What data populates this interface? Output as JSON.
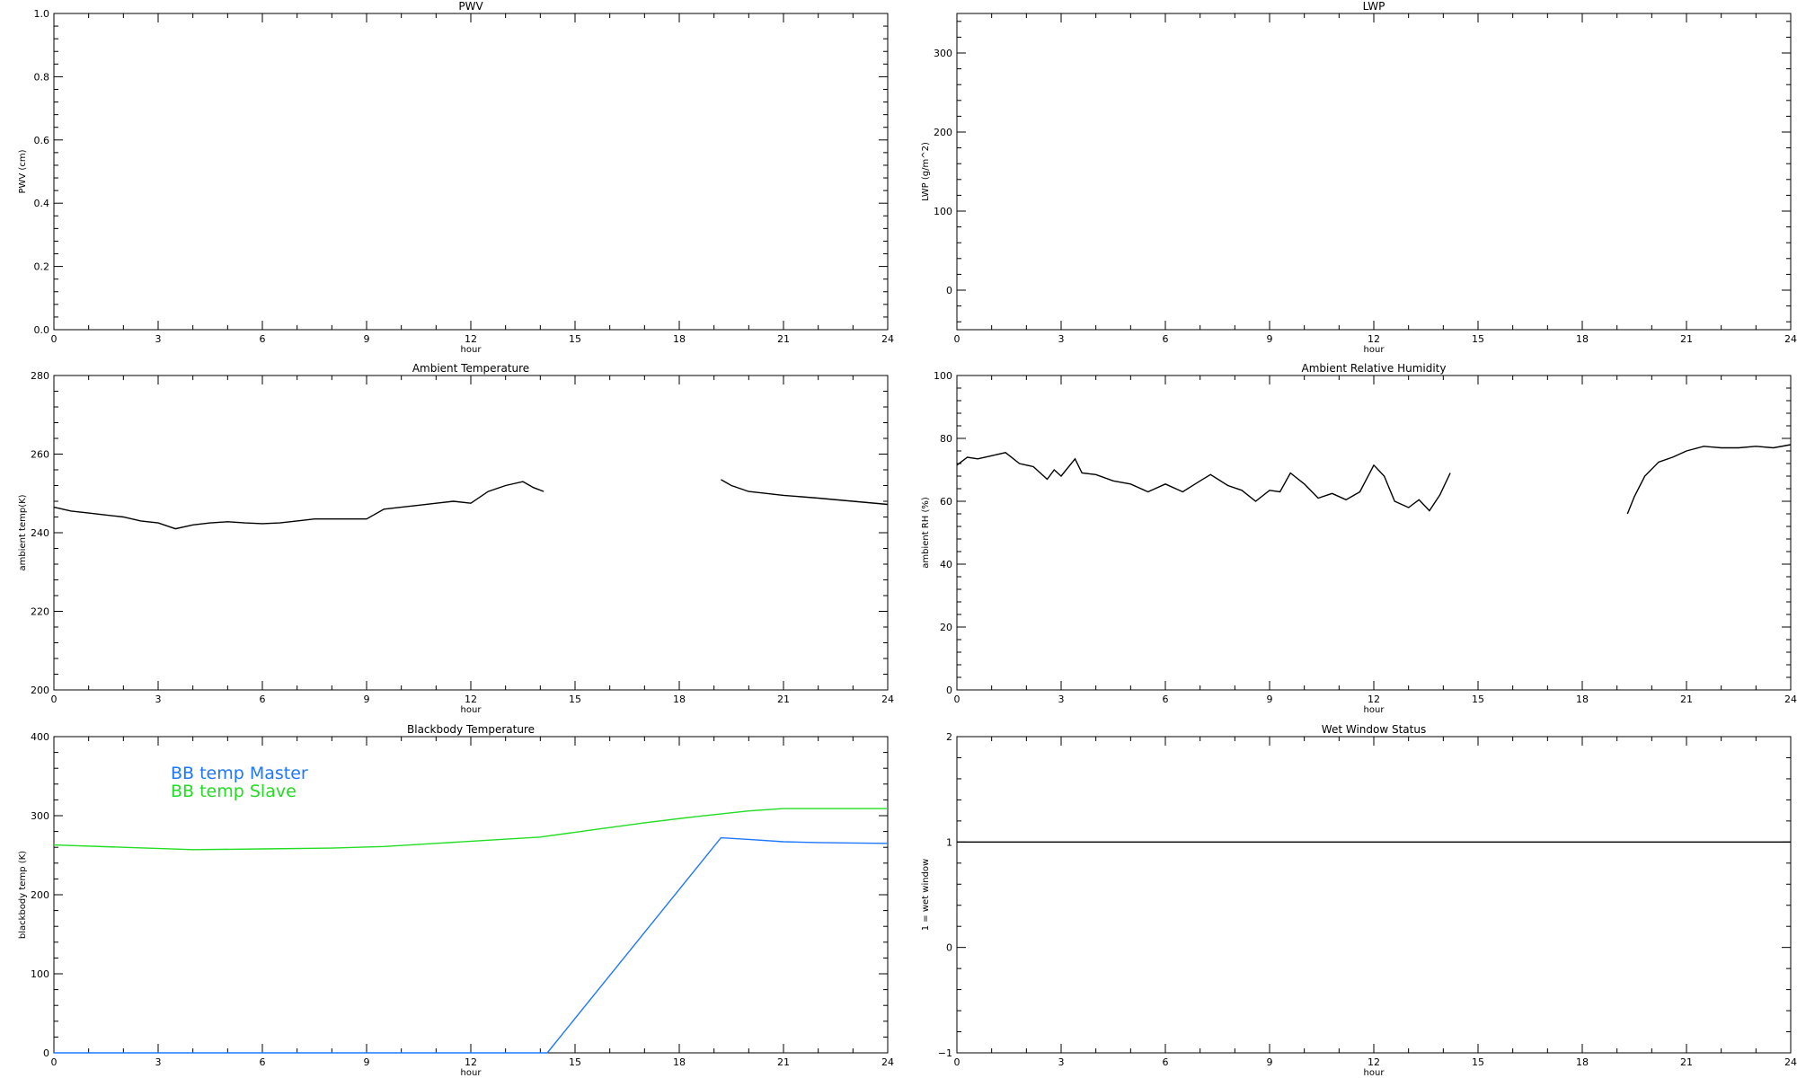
{
  "chart_data": [
    {
      "type": "line",
      "title": "PWV",
      "xlabel": "hour",
      "ylabel": "PWV (cm)",
      "xlim": [
        0,
        24
      ],
      "ylim": [
        0,
        1
      ],
      "xticks": [
        0,
        3,
        6,
        9,
        12,
        15,
        18,
        21,
        24
      ],
      "yticks": [
        0,
        0.2,
        0.4,
        0.6,
        0.8,
        1.0
      ],
      "ytick_labels": [
        "0.0",
        "0.2",
        "0.4",
        "0.6",
        "0.8",
        "1.0"
      ],
      "series": []
    },
    {
      "type": "line",
      "title": "LWP",
      "xlabel": "hour",
      "ylabel": "LWP (g/m^2)",
      "xlim": [
        0,
        24
      ],
      "ylim": [
        -50,
        350
      ],
      "xticks": [
        0,
        3,
        6,
        9,
        12,
        15,
        18,
        21,
        24
      ],
      "yticks": [
        0,
        100,
        200,
        300
      ],
      "ytick_labels": [
        "0",
        "100",
        "200",
        "300"
      ],
      "series": []
    },
    {
      "type": "line",
      "title": "Ambient Temperature",
      "xlabel": "hour",
      "ylabel": "ambient temp(K)",
      "xlim": [
        0,
        24
      ],
      "ylim": [
        200,
        280
      ],
      "xticks": [
        0,
        3,
        6,
        9,
        12,
        15,
        18,
        21,
        24
      ],
      "yticks": [
        200,
        220,
        240,
        260,
        280
      ],
      "ytick_labels": [
        "200",
        "220",
        "240",
        "260",
        "280"
      ],
      "series": [
        {
          "color": "#000000",
          "segments": [
            [
              [
                0,
                246.5
              ],
              [
                0.5,
                245.5
              ],
              [
                1,
                245.0
              ],
              [
                1.5,
                244.5
              ],
              [
                2,
                244.0
              ],
              [
                2.5,
                243.0
              ],
              [
                3,
                242.5
              ],
              [
                3.5,
                241.0
              ],
              [
                4,
                242.0
              ],
              [
                4.5,
                242.5
              ],
              [
                5,
                242.8
              ],
              [
                5.5,
                242.5
              ],
              [
                6,
                242.3
              ],
              [
                6.5,
                242.5
              ],
              [
                7,
                243.0
              ],
              [
                7.5,
                243.5
              ],
              [
                8,
                243.5
              ],
              [
                8.5,
                243.5
              ],
              [
                9,
                243.5
              ],
              [
                9.5,
                246.0
              ],
              [
                10,
                246.5
              ],
              [
                10.5,
                247.0
              ],
              [
                11,
                247.5
              ],
              [
                11.5,
                248.0
              ],
              [
                12,
                247.5
              ],
              [
                12.5,
                250.5
              ],
              [
                13,
                252.0
              ],
              [
                13.5,
                253.0
              ],
              [
                13.8,
                251.5
              ],
              [
                14.1,
                250.5
              ]
            ],
            [
              [
                19.2,
                253.5
              ],
              [
                19.5,
                252.0
              ],
              [
                20,
                250.5
              ],
              [
                21,
                249.5
              ],
              [
                22,
                248.8
              ],
              [
                23,
                248.0
              ],
              [
                24,
                247.2
              ]
            ]
          ]
        }
      ]
    },
    {
      "type": "line",
      "title": "Ambient Relative Humidity",
      "xlabel": "hour",
      "ylabel": "ambient RH (%)",
      "xlim": [
        0,
        24
      ],
      "ylim": [
        0,
        100
      ],
      "xticks": [
        0,
        3,
        6,
        9,
        12,
        15,
        18,
        21,
        24
      ],
      "yticks": [
        0,
        20,
        40,
        60,
        80,
        100
      ],
      "ytick_labels": [
        "0",
        "20",
        "40",
        "60",
        "80",
        "100"
      ],
      "series": [
        {
          "color": "#000000",
          "segments": [
            [
              [
                0,
                71.5
              ],
              [
                0.3,
                74.0
              ],
              [
                0.6,
                73.5
              ],
              [
                1,
                74.5
              ],
              [
                1.4,
                75.5
              ],
              [
                1.8,
                72.0
              ],
              [
                2.2,
                71.0
              ],
              [
                2.6,
                67.0
              ],
              [
                2.8,
                70.0
              ],
              [
                3,
                68.0
              ],
              [
                3.4,
                73.5
              ],
              [
                3.6,
                69.0
              ],
              [
                4,
                68.5
              ],
              [
                4.5,
                66.5
              ],
              [
                5,
                65.5
              ],
              [
                5.5,
                63.0
              ],
              [
                6,
                65.5
              ],
              [
                6.5,
                63.0
              ],
              [
                7,
                66.5
              ],
              [
                7.3,
                68.5
              ],
              [
                7.8,
                65.0
              ],
              [
                8.2,
                63.5
              ],
              [
                8.6,
                60.0
              ],
              [
                9,
                63.5
              ],
              [
                9.3,
                63.0
              ],
              [
                9.6,
                69.0
              ],
              [
                10,
                65.5
              ],
              [
                10.4,
                61.0
              ],
              [
                10.8,
                62.5
              ],
              [
                11.2,
                60.5
              ],
              [
                11.6,
                63.0
              ],
              [
                12,
                71.5
              ],
              [
                12.3,
                68.0
              ],
              [
                12.6,
                60.0
              ],
              [
                13,
                58.0
              ],
              [
                13.3,
                60.5
              ],
              [
                13.6,
                57.0
              ],
              [
                13.9,
                62.0
              ],
              [
                14.2,
                69.0
              ]
            ],
            [
              [
                19.3,
                56.0
              ],
              [
                19.5,
                61.5
              ],
              [
                19.8,
                68.0
              ],
              [
                20.2,
                72.5
              ],
              [
                20.6,
                74.0
              ],
              [
                21,
                76.0
              ],
              [
                21.5,
                77.5
              ],
              [
                22,
                77.0
              ],
              [
                22.5,
                77.0
              ],
              [
                23,
                77.5
              ],
              [
                23.5,
                77.0
              ],
              [
                24,
                78.0
              ]
            ]
          ]
        }
      ]
    },
    {
      "type": "line",
      "title": "Blackbody Temperature",
      "xlabel": "hour",
      "ylabel": "blackbody temp (K)",
      "xlim": [
        0,
        24
      ],
      "ylim": [
        0,
        400
      ],
      "xticks": [
        0,
        3,
        6,
        9,
        12,
        15,
        18,
        21,
        24
      ],
      "yticks": [
        0,
        100,
        200,
        300,
        400
      ],
      "ytick_labels": [
        "0",
        "100",
        "200",
        "300",
        "400"
      ],
      "legend": "upper-left",
      "series": [
        {
          "name": "BB temp Master",
          "color": "#1e78ff",
          "segments": [
            [
              [
                0,
                0
              ],
              [
                14.2,
                0
              ],
              [
                19.2,
                272
              ],
              [
                20,
                270
              ],
              [
                21,
                267
              ],
              [
                22,
                266
              ],
              [
                23,
                265.5
              ],
              [
                24,
                265
              ]
            ]
          ]
        },
        {
          "name": "BB temp Slave",
          "color": "#22dd22",
          "segments": [
            [
              [
                0,
                263
              ],
              [
                2,
                260
              ],
              [
                4,
                257
              ],
              [
                6,
                258
              ],
              [
                8,
                259
              ],
              [
                9.5,
                261
              ],
              [
                11,
                265
              ],
              [
                12.5,
                269
              ],
              [
                14,
                273
              ],
              [
                15.5,
                282
              ],
              [
                17,
                291
              ],
              [
                18.5,
                299
              ],
              [
                20,
                306
              ],
              [
                21,
                309
              ],
              [
                22,
                309
              ],
              [
                24,
                309
              ]
            ]
          ]
        }
      ]
    },
    {
      "type": "line",
      "title": "Wet Window Status",
      "xlabel": "hour",
      "ylabel": "1 = wet window",
      "xlim": [
        0,
        24
      ],
      "ylim": [
        -1,
        2
      ],
      "xticks": [
        0,
        3,
        6,
        9,
        12,
        15,
        18,
        21,
        24
      ],
      "yticks": [
        -1,
        0,
        1,
        2
      ],
      "ytick_labels": [
        "−1",
        "0",
        "1",
        "2"
      ],
      "series": [
        {
          "color": "#000000",
          "segments": [
            [
              [
                0,
                1
              ],
              [
                24,
                1
              ]
            ]
          ]
        }
      ]
    }
  ]
}
